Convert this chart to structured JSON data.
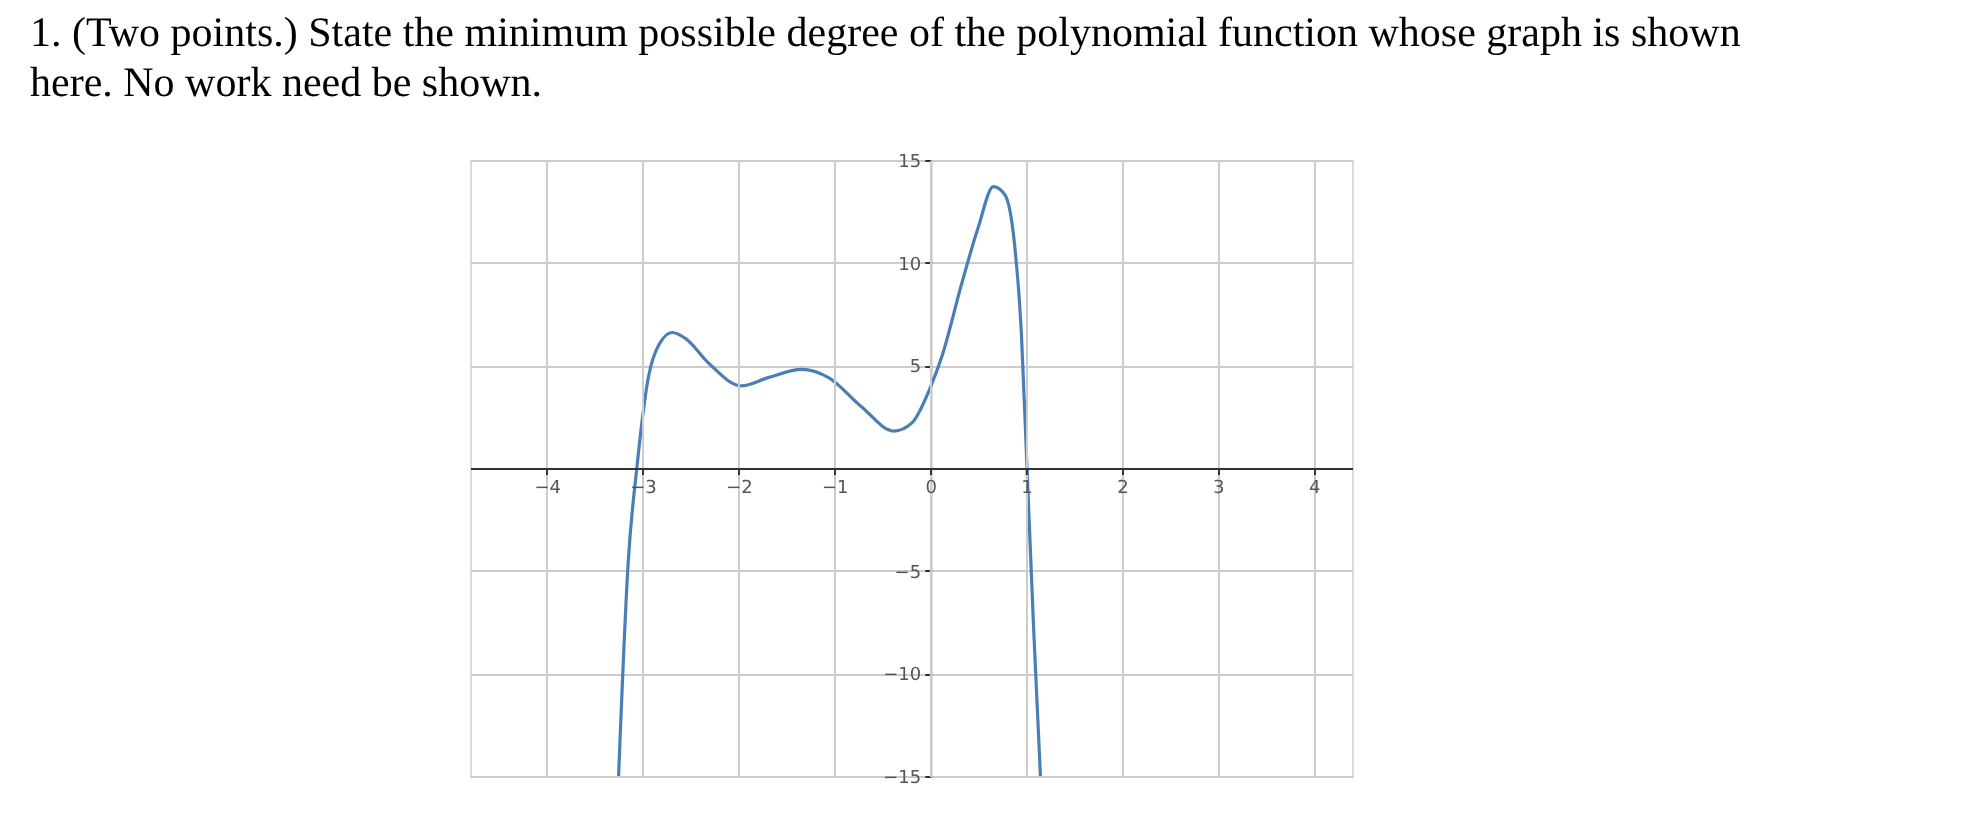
{
  "chart_data": {
    "type": "line",
    "title": "1. (Two points.) State the minimum possible degree of the polynomial function whose graph is shown here. No work need be shown.",
    "x": [
      -3.25,
      -3.15,
      -3.06,
      -2.94,
      -2.83,
      -2.69,
      -2.55,
      -2.31,
      -1.97,
      -1.69,
      -1.34,
      -1.06,
      -0.72,
      -0.38,
      -0.19,
      0,
      0.12,
      0.33,
      0.5,
      0.66,
      0.78,
      0.88,
      0.95,
      1.01,
      1.08,
      1.15
    ],
    "series": [
      {
        "color": "#4a7fb5",
        "values": [
          -15,
          -4.6,
          0,
          4.4,
          6.0,
          6.6,
          6.3,
          5.1,
          4.0,
          4.4,
          4.8,
          4.4,
          3.0,
          1.8,
          2.2,
          3.9,
          5.4,
          9.0,
          11.7,
          13.7,
          13.3,
          10.9,
          6.7,
          0,
          -7.9,
          -15
        ]
      }
    ],
    "xlim": [
      -4.8,
      4.4
    ],
    "xticks": [
      -4,
      -3,
      -2,
      -1,
      0,
      1,
      2,
      3,
      4
    ],
    "ylim": [
      -15,
      15
    ],
    "yticks": [
      -15,
      -10,
      -5,
      {
        "value": 0,
        "label": null
      },
      5,
      10,
      15
    ],
    "grid": true,
    "marker": "none",
    "line_style": "solid"
  }
}
